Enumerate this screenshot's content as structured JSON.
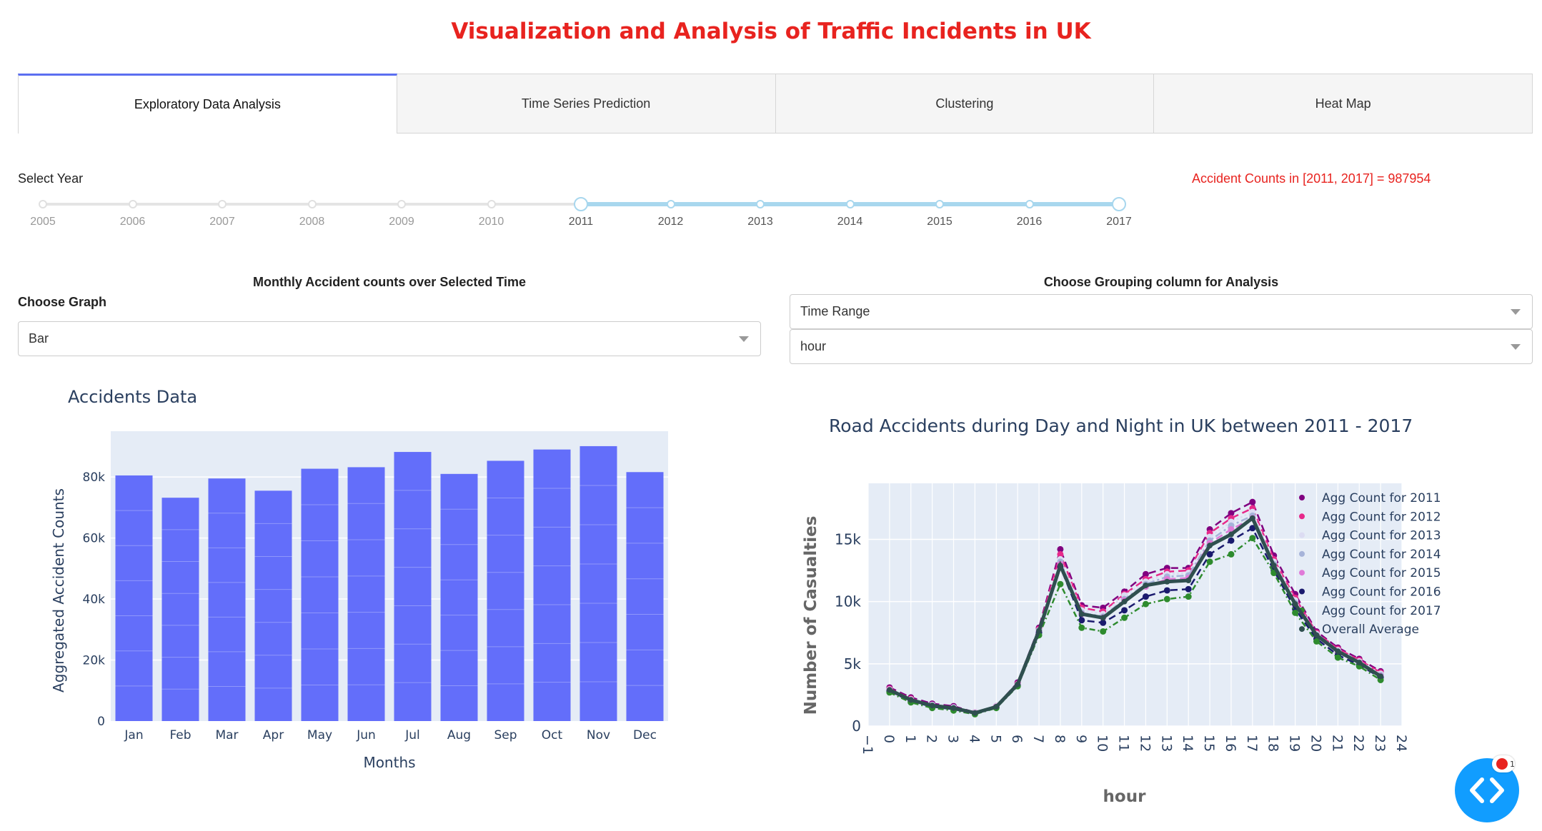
{
  "title": "Visualization and Analysis of Traffic Incidents in UK",
  "tabs": [
    {
      "label": "Exploratory Data Analysis",
      "active": true
    },
    {
      "label": "Time Series Prediction",
      "active": false
    },
    {
      "label": "Clustering",
      "active": false
    },
    {
      "label": "Heat Map",
      "active": false
    }
  ],
  "year_selector": {
    "label": "Select Year",
    "years": [
      "2005",
      "2006",
      "2007",
      "2008",
      "2009",
      "2010",
      "2011",
      "2012",
      "2013",
      "2014",
      "2015",
      "2016",
      "2017"
    ],
    "selected_range": [
      2011,
      2017
    ]
  },
  "accident_count_text": "Accident Counts in [2011, 2017] = 987954",
  "left_panel": {
    "heading": "Monthly Accident counts over Selected Time",
    "choose_graph_label": "Choose Graph",
    "graph_dropdown_value": "Bar"
  },
  "right_panel": {
    "heading": "Choose Grouping column for Analysis",
    "dropdown1_value": "Time Range",
    "dropdown2_value": "hour"
  },
  "colors": {
    "title": "#e8231f",
    "bar": "#636efa",
    "plot_bg": "#e5ecf6",
    "slider_track": "#a8d7ee",
    "tab_accent": "#5b6ff0",
    "fab": "#119dff"
  },
  "fab_icon": "code-brackets-icon",
  "chart_data": [
    {
      "type": "bar",
      "title": "Accidents Data",
      "xlabel": "Months",
      "ylabel": "Aggregated Accident Counts",
      "categories": [
        "Jan",
        "Feb",
        "Mar",
        "Apr",
        "May",
        "Jun",
        "Jul",
        "Aug",
        "Sep",
        "Oct",
        "Nov",
        "Dec"
      ],
      "values": [
        80500,
        73200,
        79500,
        75500,
        82700,
        83200,
        88200,
        81000,
        85300,
        89000,
        90100,
        81600
      ],
      "yticks": [
        "0",
        "20k",
        "40k",
        "60k",
        "80k"
      ],
      "ylim": [
        0,
        95000
      ],
      "grid": true,
      "stacked_segments": 7
    },
    {
      "type": "line",
      "title": "Road Accidents during Day and Night in UK between 2011 - 2017",
      "xlabel": "hour",
      "ylabel": "Number of Casualties",
      "xlim": [
        -1,
        24
      ],
      "ylim": [
        0,
        19500
      ],
      "xticks": [
        "-1",
        "0",
        "1",
        "2",
        "3",
        "4",
        "5",
        "6",
        "7",
        "8",
        "9",
        "10",
        "11",
        "12",
        "13",
        "14",
        "15",
        "16",
        "17",
        "18",
        "19",
        "20",
        "21",
        "22",
        "23",
        "24"
      ],
      "yticks": [
        "0",
        "5k",
        "10k",
        "15k"
      ],
      "legend_position": "right",
      "x": [
        0,
        1,
        2,
        3,
        4,
        5,
        6,
        7,
        8,
        9,
        10,
        11,
        12,
        13,
        14,
        15,
        16,
        17,
        18,
        19,
        20,
        21,
        22,
        23
      ],
      "series": [
        {
          "name": "Agg Count for 2011",
          "color": "#800080",
          "values": [
            3100,
            2300,
            1800,
            1600,
            1100,
            1600,
            3500,
            7900,
            14200,
            9700,
            9500,
            10800,
            12200,
            12700,
            12700,
            15800,
            17100,
            18000,
            13700,
            10600,
            7600,
            6300,
            5400,
            4400
          ]
        },
        {
          "name": "Agg Count for 2012",
          "color": "#e7298a",
          "values": [
            3000,
            2200,
            1700,
            1500,
            1100,
            1600,
            3400,
            7800,
            13800,
            9500,
            9200,
            10600,
            11800,
            12400,
            12500,
            15500,
            16700,
            17500,
            13400,
            10300,
            7500,
            6200,
            5300,
            4300
          ]
        },
        {
          "name": "Agg Count for 2013",
          "color": "#dcdcf2",
          "values": [
            2950,
            2150,
            1700,
            1500,
            1100,
            1600,
            3350,
            7700,
            13400,
            9300,
            9000,
            10500,
            11600,
            12200,
            12300,
            15200,
            16400,
            17200,
            13200,
            10100,
            7400,
            6100,
            5200,
            4200
          ]
        },
        {
          "name": "Agg Count for 2014",
          "color": "#a6b3d9",
          "values": [
            2900,
            2100,
            1650,
            1450,
            1050,
            1550,
            3300,
            7700,
            13200,
            9100,
            8800,
            10200,
            11400,
            12000,
            12100,
            14900,
            16100,
            16900,
            13000,
            9900,
            7300,
            6000,
            5100,
            4100
          ]
        },
        {
          "name": "Agg Count for 2015",
          "color": "#e07ad8",
          "values": [
            2900,
            2100,
            1600,
            1400,
            1050,
            1550,
            3300,
            7600,
            13000,
            9000,
            8700,
            10100,
            11200,
            11800,
            11900,
            14700,
            15800,
            16700,
            12800,
            9700,
            7200,
            5900,
            5100,
            4000
          ]
        },
        {
          "name": "Agg Count for 2016",
          "color": "#1a1a6e",
          "values": [
            2800,
            2000,
            1550,
            1350,
            1000,
            1500,
            3250,
            7500,
            12800,
            8500,
            8300,
            9300,
            10400,
            10900,
            11000,
            13800,
            14900,
            15900,
            12500,
            9400,
            7000,
            5700,
            4900,
            3900
          ]
        },
        {
          "name": "Agg Count for 2017",
          "color": "#2e8b2e",
          "values": [
            2700,
            1900,
            1450,
            1250,
            950,
            1450,
            3200,
            7300,
            11400,
            7900,
            7600,
            8700,
            9800,
            10200,
            10400,
            13200,
            13800,
            15100,
            12300,
            9100,
            6800,
            5500,
            4800,
            3700
          ]
        },
        {
          "name": "Overall Average",
          "color": "#2f4f4f",
          "values": [
            2900,
            2100,
            1650,
            1450,
            1050,
            1550,
            3350,
            7650,
            12900,
            9000,
            8700,
            10000,
            11300,
            11600,
            11700,
            14500,
            15400,
            16700,
            12900,
            9800,
            7300,
            6000,
            5100,
            4000
          ]
        }
      ]
    }
  ]
}
